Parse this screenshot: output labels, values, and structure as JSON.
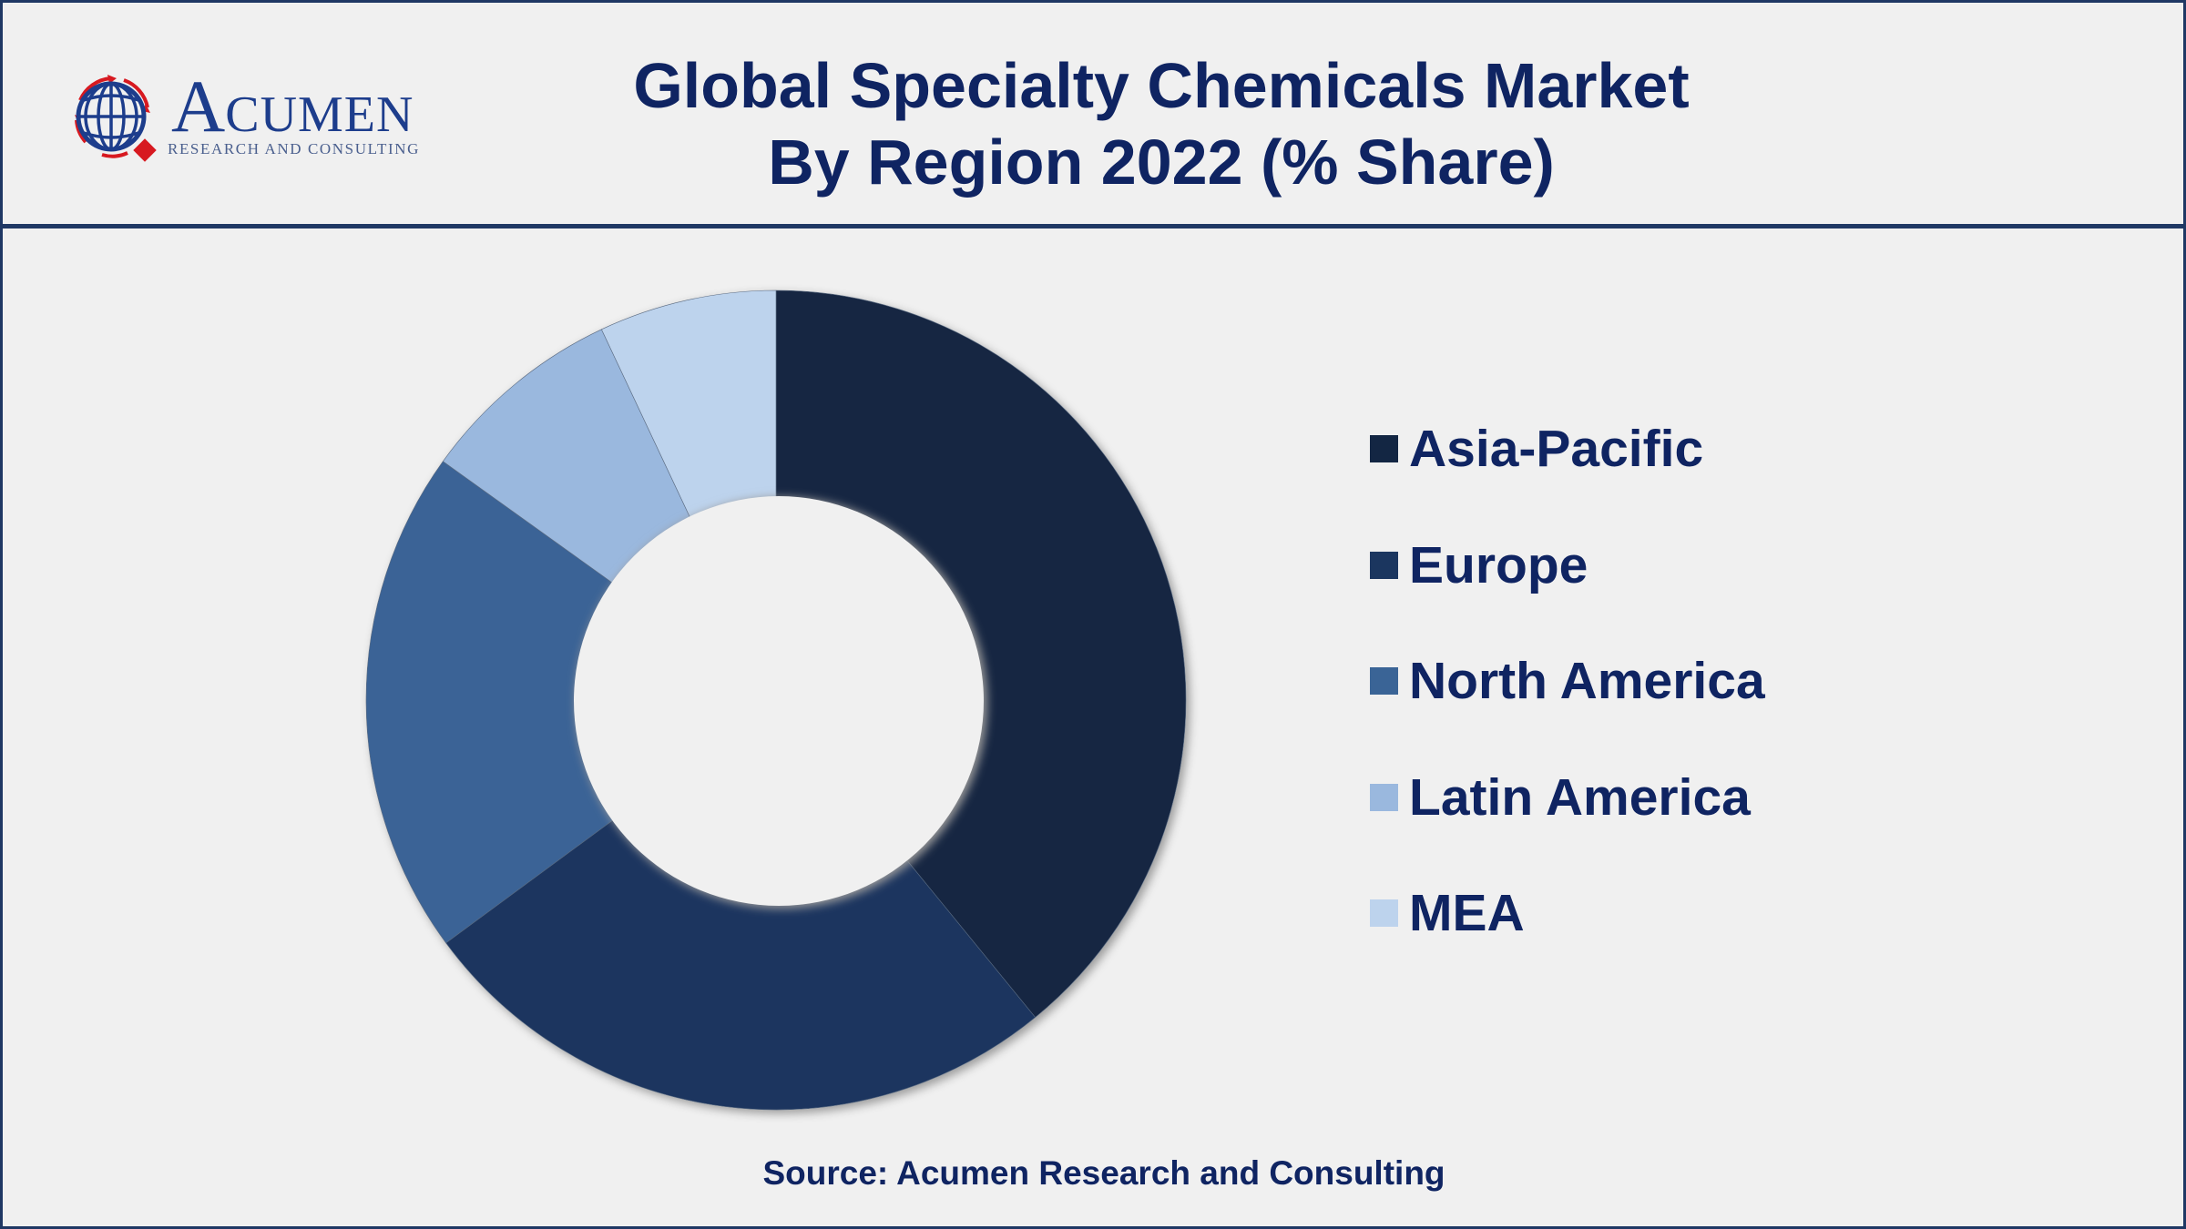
{
  "header": {
    "logo": {
      "initial": "A",
      "word_rest": "CUMEN",
      "tagline": "RESEARCH AND CONSULTING",
      "icon": "globe-icon"
    },
    "title_line1": "Global Specialty Chemicals Market",
    "title_line2": "By Region 2022 (% Share)"
  },
  "footer": {
    "source": "Source: Acumen Research and Consulting"
  },
  "colors": {
    "border": "#1f3864",
    "text": "#0f2462",
    "background": "#f0f0f0",
    "logo_red": "#d71920",
    "logo_blue": "#1d3d8c"
  },
  "legend": {
    "position": "right",
    "items": [
      {
        "label": "Asia-Pacific",
        "color": "#132643"
      },
      {
        "label": "Europe",
        "color": "#1b365f"
      },
      {
        "label": "North America",
        "color": "#3a6496"
      },
      {
        "label": "Latin America",
        "color": "#9ab8de"
      },
      {
        "label": "MEA",
        "color": "#bdd3ed"
      }
    ]
  },
  "chart_data": {
    "type": "pie",
    "subtype": "donut",
    "title": "Global Specialty Chemicals Market By Region 2022 (% Share)",
    "categories": [
      "Asia-Pacific",
      "Europe",
      "North America",
      "Latin America",
      "MEA"
    ],
    "values": [
      39.1,
      25.8,
      20.0,
      8.1,
      7.0
    ],
    "unit": "% share",
    "colors": [
      "#132643",
      "#1b365f",
      "#3a6496",
      "#9ab8de",
      "#bdd3ed"
    ],
    "start_angle_deg": 0,
    "direction": "clockwise",
    "hole_ratio": 0.5,
    "data_labels": false,
    "legend_position": "right",
    "source": "Source: Acumen Research and Consulting"
  }
}
